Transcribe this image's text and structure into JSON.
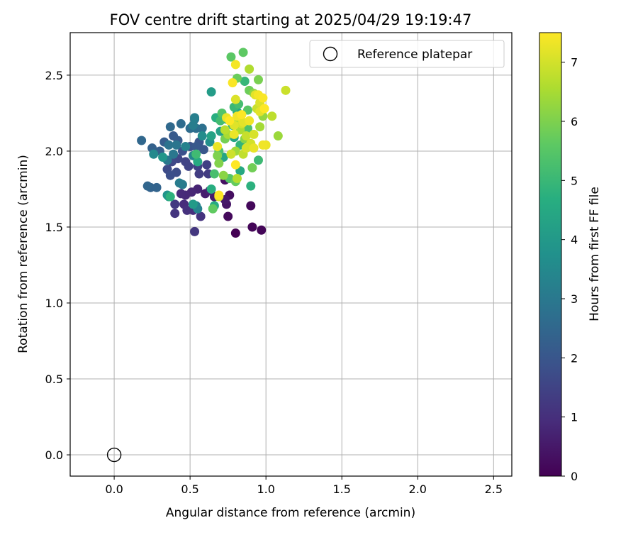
{
  "chart_data": {
    "type": "scatter",
    "title": "FOV centre drift starting at 2025/04/29 19:19:47",
    "xlabel": "Angular distance from reference (arcmin)",
    "ylabel": "Rotation from reference (arcmin)",
    "xlim": [
      -0.29,
      2.62
    ],
    "ylim": [
      -0.14,
      2.78
    ],
    "xticks": [
      "0.0",
      "0.5",
      "1.0",
      "1.5",
      "2.0",
      "2.5"
    ],
    "yticks": [
      "0.0",
      "0.5",
      "1.0",
      "1.5",
      "2.0",
      "2.5"
    ],
    "xtick_values": [
      0,
      0.5,
      1.0,
      1.5,
      2.0,
      2.5
    ],
    "ytick_values": [
      0,
      0.5,
      1.0,
      1.5,
      2.0,
      2.5
    ],
    "grid": true,
    "legend": {
      "position": "top-right",
      "entries": [
        {
          "label": "Reference platepar",
          "marker": "open-circle"
        }
      ]
    },
    "reference_point": {
      "x": 0.0,
      "y": 0.0
    },
    "colorbar": {
      "label": "Hours from first FF file",
      "colormap": "viridis",
      "range": [
        0,
        7.5
      ],
      "ticks": [
        "0",
        "1",
        "2",
        "3",
        "4",
        "5",
        "6",
        "7"
      ],
      "tick_values": [
        0,
        1,
        2,
        3,
        4,
        5,
        6,
        7
      ]
    },
    "series": [
      {
        "color_by": "hours",
        "points": [
          [
            0.8,
            1.46,
            0.0
          ],
          [
            0.91,
            1.5,
            0.1
          ],
          [
            0.97,
            1.48,
            0.1
          ],
          [
            0.9,
            1.64,
            0.15
          ],
          [
            0.75,
            1.57,
            0.2
          ],
          [
            0.76,
            1.71,
            0.3
          ],
          [
            0.73,
            1.81,
            0.35
          ],
          [
            0.74,
            1.65,
            0.4
          ],
          [
            0.73,
            1.68,
            0.5
          ],
          [
            0.66,
            1.7,
            0.55
          ],
          [
            0.6,
            1.72,
            0.6
          ],
          [
            0.63,
            1.74,
            0.7
          ],
          [
            0.55,
            1.75,
            0.75
          ],
          [
            0.51,
            1.73,
            0.8
          ],
          [
            0.47,
            1.71,
            0.85
          ],
          [
            0.44,
            1.72,
            0.9
          ],
          [
            0.46,
            1.65,
            0.95
          ],
          [
            0.52,
            1.61,
            1.0
          ],
          [
            0.48,
            1.61,
            1.05
          ],
          [
            0.57,
            1.57,
            1.1
          ],
          [
            0.4,
            1.59,
            1.15
          ],
          [
            0.53,
            1.47,
            1.2
          ],
          [
            0.4,
            1.65,
            1.25
          ],
          [
            0.62,
            1.85,
            1.3
          ],
          [
            0.56,
            1.85,
            1.35
          ],
          [
            0.61,
            1.91,
            1.4
          ],
          [
            0.55,
            1.9,
            1.45
          ],
          [
            0.47,
            1.93,
            1.5
          ],
          [
            0.49,
            1.9,
            1.5
          ],
          [
            0.42,
            1.95,
            1.6
          ],
          [
            0.38,
            1.93,
            1.65
          ],
          [
            0.35,
            1.88,
            1.7
          ],
          [
            0.41,
            1.86,
            1.75
          ],
          [
            0.37,
            1.84,
            1.8
          ],
          [
            0.45,
            2.0,
            1.85
          ],
          [
            0.5,
            2.03,
            1.9
          ],
          [
            0.56,
            2.06,
            1.95
          ],
          [
            0.59,
            2.01,
            2.0
          ],
          [
            0.54,
            2.03,
            2.05
          ],
          [
            0.39,
            2.1,
            2.1
          ],
          [
            0.42,
            2.07,
            2.15
          ],
          [
            0.33,
            2.06,
            2.2
          ],
          [
            0.3,
            2.0,
            2.25
          ],
          [
            0.25,
            2.02,
            2.3
          ],
          [
            0.24,
            1.76,
            2.35
          ],
          [
            0.28,
            1.76,
            2.4
          ],
          [
            0.22,
            1.77,
            2.45
          ],
          [
            0.18,
            2.07,
            2.5
          ],
          [
            0.37,
            2.16,
            2.55
          ],
          [
            0.44,
            2.18,
            2.6
          ],
          [
            0.5,
            2.15,
            2.65
          ],
          [
            0.54,
            2.15,
            2.7
          ],
          [
            0.58,
            2.15,
            2.75
          ],
          [
            0.53,
            2.21,
            2.8
          ],
          [
            0.36,
            2.04,
            2.85
          ],
          [
            0.41,
            2.04,
            2.9
          ],
          [
            0.39,
            1.98,
            2.95
          ],
          [
            0.35,
            1.94,
            3.0
          ],
          [
            0.45,
            1.78,
            3.05
          ],
          [
            0.43,
            1.79,
            3.1
          ],
          [
            0.52,
            2.17,
            3.15
          ],
          [
            0.53,
            2.22,
            3.2
          ],
          [
            0.54,
            1.64,
            3.25
          ],
          [
            0.47,
            2.03,
            3.3
          ],
          [
            0.55,
            1.62,
            3.3
          ],
          [
            0.52,
            1.97,
            3.4
          ],
          [
            0.26,
            1.98,
            3.5
          ],
          [
            0.58,
            2.1,
            3.6
          ],
          [
            0.63,
            2.06,
            3.7
          ],
          [
            0.35,
            1.71,
            3.8
          ],
          [
            0.32,
            1.96,
            3.9
          ],
          [
            0.36,
            1.7,
            4.0
          ],
          [
            0.52,
            1.65,
            4.05
          ],
          [
            0.64,
            2.39,
            4.1
          ],
          [
            0.74,
            2.21,
            4.2
          ],
          [
            0.7,
            2.13,
            4.25
          ],
          [
            0.64,
            2.1,
            4.3
          ],
          [
            0.79,
            2.09,
            4.35
          ],
          [
            0.72,
            1.96,
            4.4
          ],
          [
            0.81,
            2.26,
            4.45
          ],
          [
            0.83,
            1.87,
            4.5
          ],
          [
            0.55,
            1.93,
            4.55
          ],
          [
            0.66,
            1.64,
            4.6
          ],
          [
            0.64,
            1.75,
            4.65
          ],
          [
            0.67,
            2.22,
            4.7
          ],
          [
            0.9,
            1.77,
            4.75
          ],
          [
            0.37,
            1.7,
            4.8
          ],
          [
            0.83,
            2.04,
            4.85
          ],
          [
            0.78,
            2.17,
            4.9
          ],
          [
            0.86,
            2.46,
            4.95
          ],
          [
            0.79,
            2.29,
            5.0
          ],
          [
            0.95,
            1.94,
            5.05
          ],
          [
            0.54,
            1.98,
            5.1
          ],
          [
            0.7,
            2.2,
            5.15
          ],
          [
            0.82,
            2.31,
            5.2
          ],
          [
            0.66,
            1.85,
            5.25
          ],
          [
            0.69,
            2.0,
            5.3
          ],
          [
            0.88,
            2.15,
            5.35
          ],
          [
            0.71,
            2.25,
            5.4
          ],
          [
            0.76,
            1.82,
            5.45
          ],
          [
            0.88,
            2.27,
            5.5
          ],
          [
            0.77,
            2.62,
            5.55
          ],
          [
            0.85,
            2.65,
            5.6
          ],
          [
            0.65,
            1.62,
            5.65
          ],
          [
            0.8,
            1.8,
            5.7
          ],
          [
            0.81,
            2.48,
            5.75
          ],
          [
            0.89,
            2.4,
            5.8
          ],
          [
            0.91,
            1.89,
            5.85
          ],
          [
            0.73,
            2.08,
            5.9
          ],
          [
            0.95,
            2.47,
            5.95
          ],
          [
            0.68,
            1.97,
            6.0
          ],
          [
            0.69,
            1.92,
            6.05
          ],
          [
            0.86,
            2.08,
            6.1
          ],
          [
            0.72,
            1.84,
            6.15
          ],
          [
            0.92,
            2.38,
            6.2
          ],
          [
            0.98,
            2.23,
            6.25
          ],
          [
            0.82,
            2.21,
            6.3
          ],
          [
            1.08,
            2.1,
            6.35
          ],
          [
            0.8,
            2.0,
            6.4
          ],
          [
            0.96,
            2.16,
            6.45
          ],
          [
            0.75,
            2.11,
            6.5
          ],
          [
            0.83,
            2.14,
            6.55
          ],
          [
            0.89,
            2.54,
            6.6
          ],
          [
            0.81,
            1.82,
            6.65
          ],
          [
            0.73,
            2.14,
            6.7
          ],
          [
            1.04,
            2.23,
            6.75
          ],
          [
            0.85,
            1.98,
            6.8
          ],
          [
            0.87,
            2.1,
            6.85
          ],
          [
            0.94,
            2.28,
            6.9
          ],
          [
            1.13,
            2.4,
            6.9
          ],
          [
            0.77,
            1.98,
            6.95
          ],
          [
            0.9,
            2.05,
            7.0
          ],
          [
            0.84,
            2.18,
            7.0
          ],
          [
            0.87,
            2.02,
            7.05
          ],
          [
            0.92,
            2.11,
            7.05
          ],
          [
            0.96,
            2.32,
            7.1
          ],
          [
            0.8,
            2.34,
            7.1
          ],
          [
            0.69,
            1.7,
            7.15
          ],
          [
            0.79,
            2.17,
            7.15
          ],
          [
            0.93,
            2.37,
            7.2
          ],
          [
            0.85,
            2.19,
            7.2
          ],
          [
            0.96,
            2.26,
            7.2
          ],
          [
            0.92,
            2.02,
            7.25
          ],
          [
            0.74,
            2.22,
            7.25
          ],
          [
            0.79,
            2.11,
            7.3
          ],
          [
            0.68,
            2.03,
            7.3
          ],
          [
            1.0,
            2.04,
            7.3
          ],
          [
            0.98,
            2.04,
            7.35
          ],
          [
            0.81,
            2.23,
            7.35
          ],
          [
            0.89,
            2.2,
            7.35
          ],
          [
            0.95,
            2.37,
            7.4
          ],
          [
            0.8,
            2.57,
            7.4
          ],
          [
            0.78,
            2.45,
            7.45
          ],
          [
            0.98,
            2.35,
            7.45
          ],
          [
            0.99,
            2.28,
            7.5
          ],
          [
            0.8,
            1.91,
            7.5
          ],
          [
            0.76,
            2.2,
            7.5
          ],
          [
            0.69,
            1.71,
            7.5
          ],
          [
            0.84,
            2.24,
            7.5
          ]
        ]
      }
    ]
  }
}
